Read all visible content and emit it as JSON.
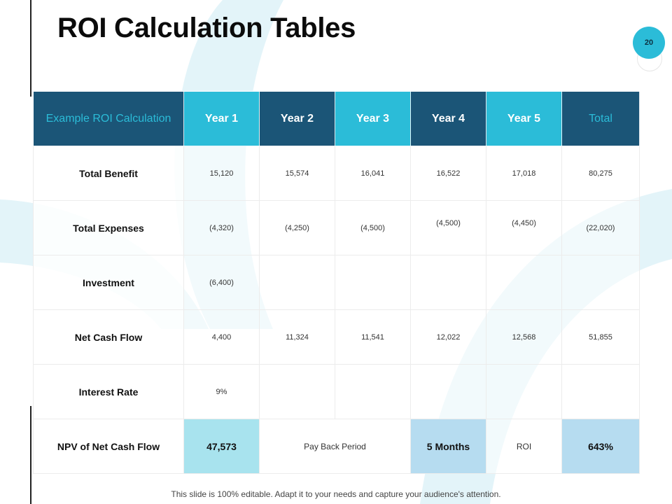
{
  "slide": {
    "title": "ROI Calculation Tables",
    "page_number": "20",
    "footer": "This slide is 100% editable. Adapt it to your needs and capture your audience's attention."
  },
  "colors": {
    "dark_blue": "#1b5577",
    "cyan": "#2bbcd8",
    "light_cyan_highlight": "#a8e3ee",
    "light_blue_highlight": "#b6dcf0",
    "background_shape": "#e3f4f9"
  },
  "table": {
    "headers": [
      "Example ROI Calculation",
      "Year 1",
      "Year 2",
      "Year 3",
      "Year 4",
      "Year 5",
      "Total"
    ],
    "rows": [
      {
        "label": "Total Benefit",
        "values": [
          "15,120",
          "15,574",
          "16,041",
          "16,522",
          "17,018",
          "80,275"
        ]
      },
      {
        "label": "Total Expenses",
        "values": [
          "(4,320)",
          "(4,250)",
          "(4,500)",
          "(4,500)",
          "(4,450)",
          "(22,020)"
        ]
      },
      {
        "label": "Investment",
        "values": [
          "(6,400)",
          "",
          "",
          "",
          "",
          ""
        ]
      },
      {
        "label": "Net Cash Flow",
        "values": [
          "4,400",
          "11,324",
          "11,541",
          "12,022",
          "12,568",
          "51,855"
        ]
      },
      {
        "label": "Interest Rate",
        "values": [
          "9%",
          "",
          "",
          "",
          "",
          ""
        ]
      }
    ],
    "npv_row": {
      "label": "NPV of Net Cash Flow",
      "npv_value": "47,573",
      "payback_label": "Pay Back Period",
      "payback_value": "5 Months",
      "roi_label": "ROI",
      "roi_value": "643%"
    }
  }
}
